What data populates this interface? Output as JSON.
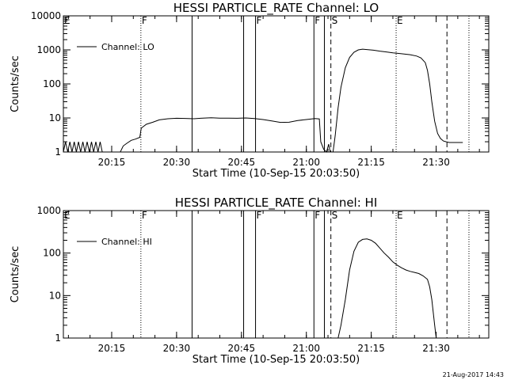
{
  "timestamp": "21-Aug-2017 14:43",
  "chart_data": [
    {
      "type": "line",
      "title": "HESSI PARTICLE_RATE Channel: LO",
      "xlabel": "Start Time (10-Sep-15 20:03:50)",
      "ylabel": "Counts/sec",
      "yscale": "log",
      "ylim": [
        1,
        10000
      ],
      "xlim": [
        "20:03:50",
        "21:42:10"
      ],
      "x_ticks": [
        "20:15",
        "20:30",
        "20:45",
        "21:00",
        "21:15",
        "21:30"
      ],
      "y_ticks": [
        "1",
        "10",
        "100",
        "1000",
        "10000"
      ],
      "legend": {
        "label": "Channel: LO",
        "placement": "top-left"
      },
      "grid": false,
      "markers": [
        {
          "label": "E",
          "time": "20:03:50",
          "style": "solid"
        },
        {
          "label": "F",
          "time": "20:21:45",
          "style": "dotted"
        },
        {
          "label": "",
          "time": "20:33:35",
          "style": "solid"
        },
        {
          "label": "",
          "time": "20:45:30",
          "style": "solid"
        },
        {
          "label": "F",
          "time": "20:48:15",
          "style": "solid"
        },
        {
          "label": "F",
          "time": "21:01:45",
          "style": "solid"
        },
        {
          "label": "",
          "time": "21:04:10",
          "style": "solid"
        },
        {
          "label": "S",
          "time": "21:05:40",
          "style": "dashed"
        },
        {
          "label": "E",
          "time": "21:20:45",
          "style": "dotted"
        },
        {
          "label": "",
          "time": "21:32:30",
          "style": "dashed"
        },
        {
          "label": "",
          "time": "21:37:35",
          "style": "dotted"
        }
      ],
      "series": [
        {
          "name": "Channel: LO",
          "points": [
            [
              "20:03:50",
              1
            ],
            [
              "20:04:20",
              2
            ],
            [
              "20:04:50",
              1
            ],
            [
              "20:05:20",
              2
            ],
            [
              "20:05:50",
              1
            ],
            [
              "20:06:20",
              2
            ],
            [
              "20:06:50",
              1
            ],
            [
              "20:07:20",
              2
            ],
            [
              "20:07:50",
              1
            ],
            [
              "20:08:20",
              2
            ],
            [
              "20:08:50",
              1
            ],
            [
              "20:09:20",
              2
            ],
            [
              "20:09:50",
              1
            ],
            [
              "20:10:20",
              2
            ],
            [
              "20:10:50",
              1
            ],
            [
              "20:11:20",
              2
            ],
            [
              "20:11:50",
              1
            ],
            [
              "20:12:20",
              2
            ],
            [
              "20:12:50",
              1
            ],
            [
              "20:13:20",
              1
            ],
            [
              "20:14:10",
              1
            ],
            [
              "20:15:00",
              1
            ],
            [
              "20:16:00",
              1
            ],
            [
              "20:17:00",
              1
            ],
            [
              "20:17:40",
              1.5
            ],
            [
              "20:18:30",
              1.8
            ],
            [
              "20:19:30",
              2.2
            ],
            [
              "20:20:30",
              2.4
            ],
            [
              "20:21:30",
              2.7
            ],
            [
              "20:21:50",
              5
            ],
            [
              "20:23:00",
              6.5
            ],
            [
              "20:24:30",
              7.5
            ],
            [
              "20:26:00",
              8.8
            ],
            [
              "20:28:00",
              9.5
            ],
            [
              "20:30:00",
              9.8
            ],
            [
              "20:32:00",
              9.7
            ],
            [
              "20:34:00",
              9.5
            ],
            [
              "20:36:00",
              9.9
            ],
            [
              "20:38:00",
              10.1
            ],
            [
              "20:40:00",
              9.9
            ],
            [
              "20:42:00",
              9.9
            ],
            [
              "20:44:00",
              9.8
            ],
            [
              "20:46:00",
              10
            ],
            [
              "20:48:00",
              9.6
            ],
            [
              "20:50:00",
              9
            ],
            [
              "20:52:00",
              8.2
            ],
            [
              "20:54:00",
              7.4
            ],
            [
              "20:56:00",
              7.5
            ],
            [
              "20:58:00",
              8.4
            ],
            [
              "21:00:00",
              9
            ],
            [
              "21:02:00",
              9.6
            ],
            [
              "21:03:00",
              9.4
            ],
            [
              "21:03:20",
              2
            ],
            [
              "21:04:00",
              1.2
            ],
            [
              "21:04:40",
              1
            ],
            [
              "21:05:10",
              1.7
            ],
            [
              "21:05:30",
              1
            ],
            [
              "21:06:10",
              1
            ],
            [
              "21:06:40",
              3
            ],
            [
              "21:07:20",
              20
            ],
            [
              "21:08:00",
              80
            ],
            [
              "21:09:00",
              300
            ],
            [
              "21:10:00",
              600
            ],
            [
              "21:11:00",
              850
            ],
            [
              "21:12:00",
              1000
            ],
            [
              "21:13:00",
              1050
            ],
            [
              "21:14:00",
              1020
            ],
            [
              "21:15:30",
              980
            ],
            [
              "21:17:00",
              920
            ],
            [
              "21:18:30",
              870
            ],
            [
              "21:20:00",
              820
            ],
            [
              "21:22:00",
              770
            ],
            [
              "21:24:00",
              720
            ],
            [
              "21:25:30",
              660
            ],
            [
              "21:26:30",
              580
            ],
            [
              "21:27:30",
              420
            ],
            [
              "21:28:00",
              250
            ],
            [
              "21:28:30",
              100
            ],
            [
              "21:29:00",
              30
            ],
            [
              "21:29:40",
              8
            ],
            [
              "21:30:20",
              3.5
            ],
            [
              "21:31:00",
              2.5
            ],
            [
              "21:31:40",
              2.1
            ],
            [
              "21:32:20",
              2
            ],
            [
              "21:33:00",
              1.9
            ],
            [
              "21:36:10",
              1.9
            ]
          ]
        }
      ]
    },
    {
      "type": "line",
      "title": "HESSI PARTICLE_RATE Channel: HI",
      "xlabel": "Start Time (10-Sep-15 20:03:50)",
      "ylabel": "Counts/sec",
      "yscale": "log",
      "ylim": [
        1,
        1000
      ],
      "xlim": [
        "20:03:50",
        "21:42:10"
      ],
      "x_ticks": [
        "20:15",
        "20:30",
        "20:45",
        "21:00",
        "21:15",
        "21:30"
      ],
      "y_ticks": [
        "1",
        "10",
        "100",
        "1000"
      ],
      "legend": {
        "label": "Channel: HI",
        "placement": "top-left"
      },
      "grid": false,
      "markers": [
        {
          "label": "E",
          "time": "20:03:50",
          "style": "solid"
        },
        {
          "label": "F",
          "time": "20:21:45",
          "style": "dotted"
        },
        {
          "label": "",
          "time": "20:33:35",
          "style": "solid"
        },
        {
          "label": "",
          "time": "20:45:30",
          "style": "solid"
        },
        {
          "label": "F",
          "time": "20:48:15",
          "style": "solid"
        },
        {
          "label": "F",
          "time": "21:01:45",
          "style": "solid"
        },
        {
          "label": "",
          "time": "21:04:10",
          "style": "solid"
        },
        {
          "label": "S",
          "time": "21:05:40",
          "style": "dashed"
        },
        {
          "label": "E",
          "time": "21:20:45",
          "style": "dotted"
        },
        {
          "label": "",
          "time": "21:32:30",
          "style": "dashed"
        },
        {
          "label": "",
          "time": "21:37:35",
          "style": "dotted"
        }
      ],
      "series": [
        {
          "name": "Channel: HI",
          "points": [
            [
              "21:07:20",
              1
            ],
            [
              "21:08:00",
              2
            ],
            [
              "21:09:00",
              8
            ],
            [
              "21:10:00",
              40
            ],
            [
              "21:11:00",
              110
            ],
            [
              "21:12:00",
              180
            ],
            [
              "21:13:00",
              210
            ],
            [
              "21:14:00",
              215
            ],
            [
              "21:15:00",
              200
            ],
            [
              "21:16:00",
              170
            ],
            [
              "21:17:00",
              130
            ],
            [
              "21:18:00",
              100
            ],
            [
              "21:19:00",
              80
            ],
            [
              "21:20:00",
              62
            ],
            [
              "21:21:00",
              52
            ],
            [
              "21:22:00",
              45
            ],
            [
              "21:23:00",
              40
            ],
            [
              "21:24:00",
              37
            ],
            [
              "21:25:00",
              35
            ],
            [
              "21:26:00",
              33
            ],
            [
              "21:27:00",
              29
            ],
            [
              "21:28:00",
              24
            ],
            [
              "21:28:30",
              16
            ],
            [
              "21:29:00",
              8
            ],
            [
              "21:29:20",
              4
            ],
            [
              "21:29:40",
              2
            ],
            [
              "21:30:00",
              1
            ]
          ]
        }
      ]
    }
  ]
}
